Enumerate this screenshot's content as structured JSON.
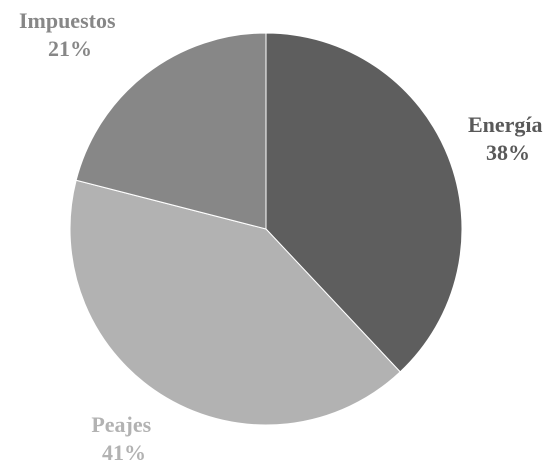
{
  "chart_data": {
    "type": "pie",
    "slices": [
      {
        "label": "Energía",
        "value": 38,
        "value_label": "38%",
        "color": "#5e5e5e",
        "label_color": "#595959"
      },
      {
        "label": "Peajes",
        "value": 41,
        "value_label": "41%",
        "color": "#b2b2b2",
        "label_color": "#b2b2b2"
      },
      {
        "label": "Impuestos",
        "value": 21,
        "value_label": "21%",
        "color": "#878787",
        "label_color": "#878787"
      }
    ],
    "start_angle": "12 o'clock",
    "direction": "clockwise",
    "legend": "none"
  }
}
